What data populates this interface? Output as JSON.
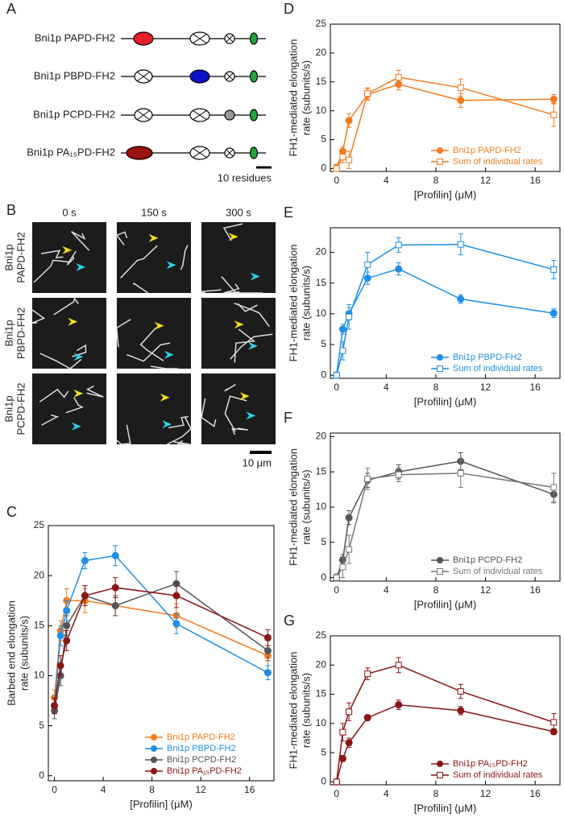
{
  "panel_a": {
    "label": "A",
    "constructs": [
      "Bni1p PAPD-FH2",
      "Bni1p PBPD-FH2",
      "Bni1p PCPD-FH2",
      "Bni1p PA₁₅PD-FH2"
    ],
    "scale_bar": "10 residues"
  },
  "panel_b": {
    "label": "B",
    "times": [
      "0 s",
      "150 s",
      "300 s"
    ],
    "rows": [
      [
        "Bni1p",
        "PAPD-FH2"
      ],
      [
        "Bni1p",
        "PBPD-FH2"
      ],
      [
        "Bni1p",
        "PCPD-FH2"
      ]
    ],
    "scale_bar": "10 μm"
  },
  "chart_data": [
    {
      "panel": "C",
      "type": "line",
      "xlabel": "[Profilin] (μM)",
      "ylabel": [
        "Barbed end elongation",
        "rate (subunits/s)"
      ],
      "x": [
        0,
        0.5,
        1,
        2.5,
        5,
        10,
        17.5
      ],
      "xlim": [
        -0.5,
        18
      ],
      "xticks": [
        0,
        4,
        8,
        12,
        16
      ],
      "ylim": [
        -0.5,
        25
      ],
      "yticks": [
        0,
        5,
        10,
        15,
        20,
        25
      ],
      "legend": "lower right",
      "series": [
        {
          "name": "Bni1p PAPD-FH2",
          "color": "#f47c20",
          "marker": "circle",
          "values": [
            7.8,
            14.5,
            17.5,
            17.5,
            17,
            16,
            12
          ],
          "errors": [
            0.8,
            1,
            1.2,
            1.2,
            1,
            1.2,
            1
          ]
        },
        {
          "name": "Bni1p PBPD-FH2",
          "color": "#1e8ee6",
          "marker": "circle",
          "values": [
            7,
            14,
            16.5,
            21.5,
            22,
            15.2,
            10.3
          ],
          "errors": [
            0.8,
            1,
            1,
            0.8,
            1,
            1,
            0.7
          ]
        },
        {
          "name": "Bni1p PCPD-FH2",
          "color": "#555555",
          "marker": "circle",
          "values": [
            6.5,
            10,
            15,
            18,
            17,
            19.2,
            12.5
          ],
          "errors": [
            0.8,
            1,
            1,
            1,
            1,
            1.2,
            1
          ]
        },
        {
          "name": "Bni1p PA₁₅PD-FH2",
          "color": "#8b1515",
          "marker": "circle",
          "values": [
            7,
            11,
            13.5,
            18,
            18.8,
            18,
            13.8
          ],
          "errors": [
            0.8,
            1,
            1,
            1,
            1,
            1.2,
            0.8
          ]
        }
      ]
    },
    {
      "panel": "D",
      "type": "line",
      "xlabel": "[Profilin] (μM)",
      "ylabel": [
        "FH1-mediated elongation",
        "rate (subunits/s)"
      ],
      "x": [
        0,
        0.5,
        1,
        2.5,
        5,
        10,
        17.5
      ],
      "xlim": [
        -0.5,
        18
      ],
      "xticks": [
        0,
        4,
        8,
        12,
        16
      ],
      "ylim": [
        -0.5,
        25
      ],
      "yticks": [
        0,
        5,
        10,
        15,
        20,
        25
      ],
      "legend": "lower right",
      "series": [
        {
          "name": "Bni1p PAPD-FH2",
          "color": "#f47c20",
          "marker": "circle",
          "values": [
            0.2,
            3,
            8.3,
            12.8,
            14.6,
            11.8,
            12
          ],
          "errors": [
            0.5,
            0.8,
            1.2,
            1,
            1,
            1.2,
            0.8
          ]
        },
        {
          "name": "Sum of individual rates",
          "color": "#f47c20",
          "marker": "square",
          "values": [
            0,
            2,
            1.5,
            13,
            15.8,
            14,
            9.3
          ],
          "errors": [
            0.5,
            1,
            1.5,
            1,
            1.2,
            1.5,
            2
          ]
        }
      ]
    },
    {
      "panel": "E",
      "type": "line",
      "xlabel": "[Profilin] (μM)",
      "ylabel": [
        "FH1-mediated elongation",
        "rate (subunits/s)"
      ],
      "x": [
        0,
        0.5,
        1,
        2.5,
        5,
        10,
        17.5
      ],
      "xlim": [
        -0.5,
        18
      ],
      "xticks": [
        0,
        4,
        8,
        12,
        16
      ],
      "ylim": [
        -0.5,
        24
      ],
      "yticks": [
        0,
        5,
        10,
        15,
        20
      ],
      "legend": "lower right",
      "series": [
        {
          "name": "Bni1p PBPD-FH2",
          "color": "#1e8ee6",
          "marker": "circle",
          "values": [
            0,
            7.5,
            10,
            15.8,
            17.3,
            12.4,
            10.1
          ],
          "errors": [
            0.5,
            0.8,
            1,
            1,
            1,
            0.7,
            0.7
          ]
        },
        {
          "name": "Sum of individual rates",
          "color": "#1e8ee6",
          "marker": "square",
          "values": [
            0,
            4,
            9.5,
            18,
            21.2,
            21.3,
            17.2
          ],
          "errors": [
            0.5,
            1.5,
            2,
            2,
            1.2,
            1.7,
            1.5
          ]
        }
      ]
    },
    {
      "panel": "F",
      "type": "line",
      "xlabel": "[Profilin] (μM)",
      "ylabel": [
        "FH1-mediated elongation",
        "rate (subunits/s)"
      ],
      "x": [
        0,
        0.5,
        1,
        2.5,
        5,
        10,
        17.5
      ],
      "xlim": [
        -0.5,
        18
      ],
      "xticks": [
        0,
        4,
        8,
        12,
        16
      ],
      "ylim": [
        -0.5,
        20.5
      ],
      "yticks": [
        0,
        5,
        10,
        15,
        20
      ],
      "legend": "lower right",
      "series": [
        {
          "name": "Bni1p PCPD-FH2",
          "color": "#555555",
          "marker": "circle",
          "values": [
            0,
            2.5,
            8.5,
            13.8,
            15,
            16.5,
            11.8
          ],
          "errors": [
            0.5,
            0.8,
            1,
            1,
            1,
            1.2,
            1.2
          ]
        },
        {
          "name": "Sum of individual rates",
          "color": "#777777",
          "marker": "square",
          "values": [
            0,
            1.5,
            4,
            14,
            14.6,
            14.8,
            12.8
          ],
          "errors": [
            0.5,
            1.5,
            2,
            1.5,
            1,
            2,
            2
          ]
        }
      ]
    },
    {
      "panel": "G",
      "type": "line",
      "xlabel": "[Profilin] (μM)",
      "ylabel": [
        "FH1-mediated elongation",
        "rate (subunits/s)"
      ],
      "x": [
        0,
        0.5,
        1,
        2.5,
        5,
        10,
        17.5
      ],
      "xlim": [
        -0.5,
        18
      ],
      "xticks": [
        0,
        4,
        8,
        12,
        16
      ],
      "ylim": [
        -0.5,
        25
      ],
      "yticks": [
        0,
        5,
        10,
        15,
        20,
        25
      ],
      "legend": "lower right",
      "series": [
        {
          "name": "Bni1p PA₁₅PD-FH2",
          "color": "#8b1515",
          "marker": "circle",
          "values": [
            0,
            4,
            6.7,
            11,
            13.2,
            12.2,
            8.6
          ],
          "errors": [
            0.5,
            0.5,
            0.8,
            0.5,
            0.8,
            0.7,
            0.5
          ]
        },
        {
          "name": "Sum of individual rates",
          "color": "#8b1515",
          "marker": "square",
          "values": [
            0,
            8.5,
            12,
            18.5,
            20,
            15.5,
            10.2
          ],
          "errors": [
            0.5,
            1.5,
            1.5,
            1,
            1.3,
            1.2,
            1.5
          ]
        }
      ]
    }
  ]
}
